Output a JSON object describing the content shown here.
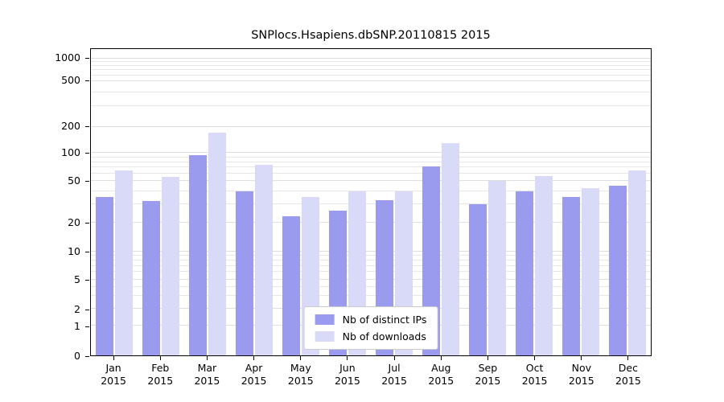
{
  "chart_data": {
    "type": "bar",
    "title": "SNPlocs.Hsapiens.dbSNP.20110815 2015",
    "categories": [
      "Jan",
      "Feb",
      "Mar",
      "Apr",
      "May",
      "Jun",
      "Jul",
      "Aug",
      "Sep",
      "Oct",
      "Nov",
      "Dec"
    ],
    "category_year": "2015",
    "series": [
      {
        "name": "Nb of distinct IPs",
        "color": "#9a9aee",
        "values": [
          35,
          32,
          95,
          40,
          23,
          26,
          33,
          72,
          30,
          40,
          35,
          45
        ]
      },
      {
        "name": "Nb of downloads",
        "color": "#d9d9f8",
        "values": [
          65,
          55,
          170,
          75,
          35,
          40,
          40,
          130,
          50,
          57,
          43,
          65
        ]
      }
    ],
    "xlabel": "",
    "ylabel": "",
    "y_scale": "log-like",
    "y_ticks": [
      0,
      1,
      2,
      5,
      10,
      20,
      50,
      100,
      200,
      500,
      1000
    ],
    "y_minor_gridlines": [
      3,
      4,
      6,
      7,
      8,
      9,
      30,
      40,
      60,
      70,
      80,
      90,
      300,
      400,
      600,
      700,
      800,
      900
    ],
    "grid": true,
    "legend_position": "lower center",
    "y_tick_fractions": [
      [
        0,
        0
      ],
      [
        1,
        0.0966
      ],
      [
        2,
        0.1514
      ],
      [
        5,
        0.248
      ],
      [
        10,
        0.3394
      ],
      [
        20,
        0.4334
      ],
      [
        50,
        0.5692
      ],
      [
        100,
        0.6606
      ],
      [
        200,
        0.7467
      ],
      [
        500,
        0.8955
      ],
      [
        1000,
        0.9687
      ]
    ]
  },
  "colors": {
    "grid_minor": "#e7e7e7",
    "grid_major": "#dedede",
    "axis": "#000000",
    "legend_border": "#cccccc",
    "background": "#ffffff"
  }
}
